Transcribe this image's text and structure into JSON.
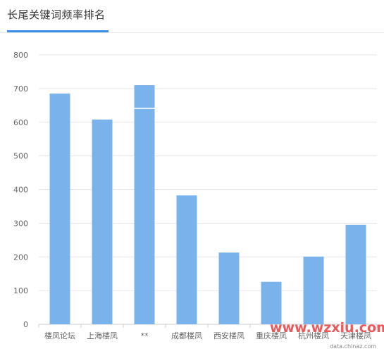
{
  "header": {
    "title": "长尾关键词频率排名"
  },
  "chart_data": {
    "type": "bar",
    "title": "长尾关键词频率排名",
    "categories": [
      "楼凤论坛",
      "上海楼凤",
      "**",
      "成都楼凤",
      "西安楼凤",
      "重庆楼凤",
      "杭州楼凤",
      "天津楼凤"
    ],
    "values": [
      685,
      608,
      710,
      383,
      213,
      126,
      201,
      295
    ],
    "segment_marks": [
      null,
      null,
      641,
      null,
      null,
      null,
      null,
      null
    ],
    "ylim": [
      0,
      800
    ],
    "yticks": [
      0,
      100,
      200,
      300,
      400,
      500,
      600,
      700,
      800
    ],
    "grid": true,
    "legend": "none",
    "bar_color": "#7ab3ec",
    "grid_color": "#e6e6e6",
    "axis_color": "#cfcfcf"
  },
  "watermark": {
    "text": "www.wzxiu.com",
    "sub": "data.chinaz.com"
  }
}
